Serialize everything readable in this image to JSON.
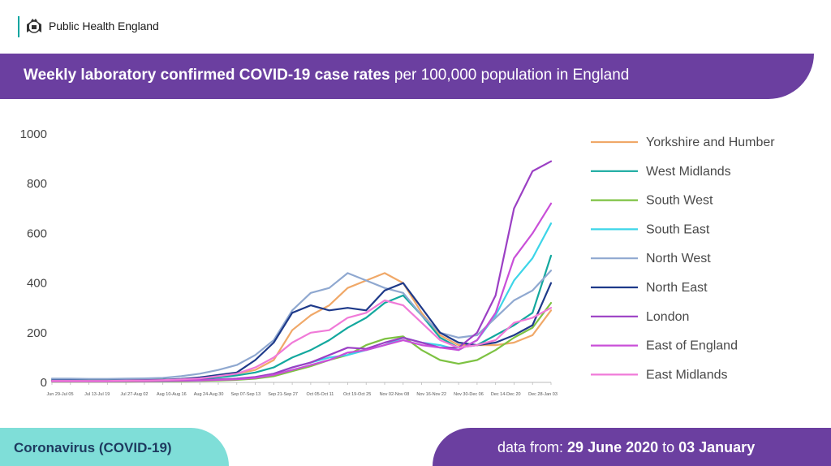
{
  "header": {
    "organisation": "Public Health England",
    "logo_icon": "royal-crest-icon"
  },
  "title": {
    "bold": "Weekly laboratory confirmed COVID-19 case rates",
    "rest": " per 100,000 population in England"
  },
  "footer": {
    "left_label": "Coronavirus (COVID-19)",
    "right_prefix": "data from: ",
    "date_start": "29 June 2020",
    "connector": " to ",
    "date_end": "03 January"
  },
  "colors": {
    "accent_purple": "#6b3fa0",
    "accent_teal": "#7fded8"
  },
  "chart_data": {
    "type": "line",
    "title": "Weekly laboratory confirmed COVID-19 case rates per 100,000 population in England",
    "xlabel": "",
    "ylabel": "",
    "ylim": [
      0,
      1000
    ],
    "yticks": [
      0,
      200,
      400,
      600,
      800,
      1000
    ],
    "x_tick_labels": [
      "Jun 29-Jul 05",
      "Jul 13-Jul 19",
      "Jul 27-Aug 02",
      "Aug 10-Aug 16",
      "Aug 24-Aug 30",
      "Sep 07-Sep 13",
      "Sep 21-Sep 27",
      "Oct 05-Oct 11",
      "Oct 19-Oct 25",
      "Nov 02-Nov 08",
      "Nov 16-Nov 22",
      "Nov 30-Dec 06",
      "Dec 14-Dec 20",
      "Dec 28-Jan 03"
    ],
    "grid": false,
    "legend_position": "right",
    "series": [
      {
        "name": "Yorkshire and Humber",
        "color": "#f0a868",
        "values": [
          9,
          9,
          8,
          8,
          9,
          10,
          11,
          12,
          14,
          25,
          35,
          50,
          90,
          210,
          270,
          310,
          380,
          410,
          440,
          400,
          280,
          190,
          150,
          150,
          150,
          160,
          190,
          290
        ]
      },
      {
        "name": "West Midlands",
        "color": "#13a89e",
        "values": [
          8,
          8,
          7,
          7,
          8,
          9,
          10,
          12,
          14,
          20,
          28,
          40,
          60,
          100,
          130,
          170,
          220,
          260,
          320,
          350,
          270,
          180,
          140,
          150,
          190,
          230,
          280,
          510
        ]
      },
      {
        "name": "South West",
        "color": "#7dc242",
        "values": [
          3,
          3,
          3,
          3,
          3,
          4,
          4,
          5,
          6,
          8,
          10,
          15,
          25,
          45,
          65,
          90,
          110,
          150,
          175,
          185,
          130,
          90,
          75,
          90,
          130,
          180,
          220,
          320
        ]
      },
      {
        "name": "South East",
        "color": "#3dd5e8",
        "values": [
          5,
          5,
          5,
          5,
          5,
          6,
          6,
          7,
          8,
          12,
          15,
          20,
          35,
          60,
          80,
          100,
          110,
          130,
          150,
          180,
          160,
          150,
          130,
          170,
          270,
          410,
          500,
          640
        ]
      },
      {
        "name": "North West",
        "color": "#8fa8d0",
        "values": [
          15,
          15,
          14,
          14,
          15,
          16,
          18,
          25,
          35,
          50,
          70,
          110,
          170,
          290,
          360,
          380,
          440,
          410,
          380,
          360,
          270,
          200,
          180,
          190,
          260,
          330,
          370,
          450
        ]
      },
      {
        "name": "North East",
        "color": "#1e3a8a",
        "values": [
          8,
          8,
          7,
          7,
          8,
          9,
          10,
          14,
          20,
          30,
          40,
          90,
          160,
          280,
          310,
          290,
          300,
          290,
          370,
          400,
          300,
          200,
          160,
          150,
          160,
          190,
          230,
          400
        ]
      },
      {
        "name": "London",
        "color": "#9b3fc4",
        "values": [
          6,
          6,
          5,
          5,
          6,
          7,
          8,
          9,
          10,
          12,
          15,
          22,
          35,
          60,
          80,
          110,
          140,
          135,
          160,
          180,
          160,
          140,
          140,
          200,
          350,
          700,
          850,
          890
        ]
      },
      {
        "name": "East of England",
        "color": "#c94fd8",
        "values": [
          4,
          4,
          4,
          4,
          5,
          5,
          6,
          7,
          8,
          10,
          12,
          18,
          30,
          50,
          70,
          90,
          120,
          130,
          150,
          170,
          150,
          140,
          130,
          170,
          280,
          500,
          600,
          720
        ]
      },
      {
        "name": "East Midlands",
        "color": "#f07ad8",
        "values": [
          6,
          6,
          6,
          6,
          7,
          8,
          9,
          12,
          16,
          25,
          35,
          60,
          100,
          160,
          200,
          210,
          260,
          280,
          330,
          310,
          240,
          170,
          140,
          150,
          170,
          240,
          260,
          300
        ]
      }
    ]
  }
}
